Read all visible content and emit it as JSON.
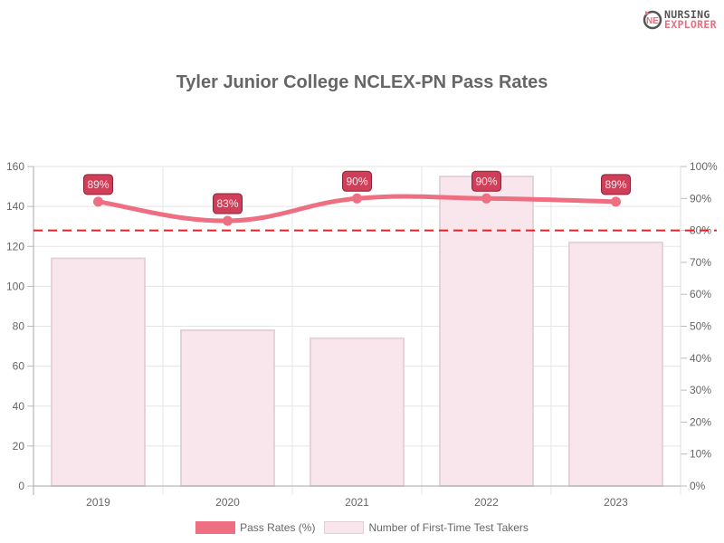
{
  "logo": {
    "line1": "NURSING",
    "line2": "EXPLORER"
  },
  "chart_data": {
    "type": "bar+line",
    "title": "Tyler Junior College NCLEX-PN Pass Rates",
    "categories": [
      "2019",
      "2020",
      "2021",
      "2022",
      "2023"
    ],
    "series": [
      {
        "name": "Pass Rates (%)",
        "type": "line",
        "axis": "right",
        "values": [
          89,
          83,
          90,
          90,
          89
        ],
        "labels": [
          "89%",
          "83%",
          "90%",
          "90%",
          "89%"
        ],
        "color": "#ef6f82"
      },
      {
        "name": "Number of First-Time Test Takers",
        "type": "bar",
        "axis": "left",
        "values": [
          114,
          78,
          74,
          155,
          122
        ],
        "color": "#f8e6ec"
      }
    ],
    "y_left": {
      "ticks": [
        "0",
        "20",
        "40",
        "60",
        "80",
        "100",
        "120",
        "140",
        "160"
      ],
      "ylim": [
        0,
        160
      ]
    },
    "y_right": {
      "ticks": [
        "0%",
        "10%",
        "20%",
        "30%",
        "40%",
        "50%",
        "60%",
        "70%",
        "80%",
        "90%",
        "100%"
      ],
      "ylim": [
        0,
        100
      ]
    },
    "reference_line": {
      "value": 80,
      "axis": "right",
      "style": "dashed",
      "color": "#e8202a"
    },
    "grid": true,
    "legend_position": "bottom"
  },
  "legend": [
    {
      "label": "Pass Rates (%)"
    },
    {
      "label": "Number of First-Time Test Takers"
    }
  ]
}
